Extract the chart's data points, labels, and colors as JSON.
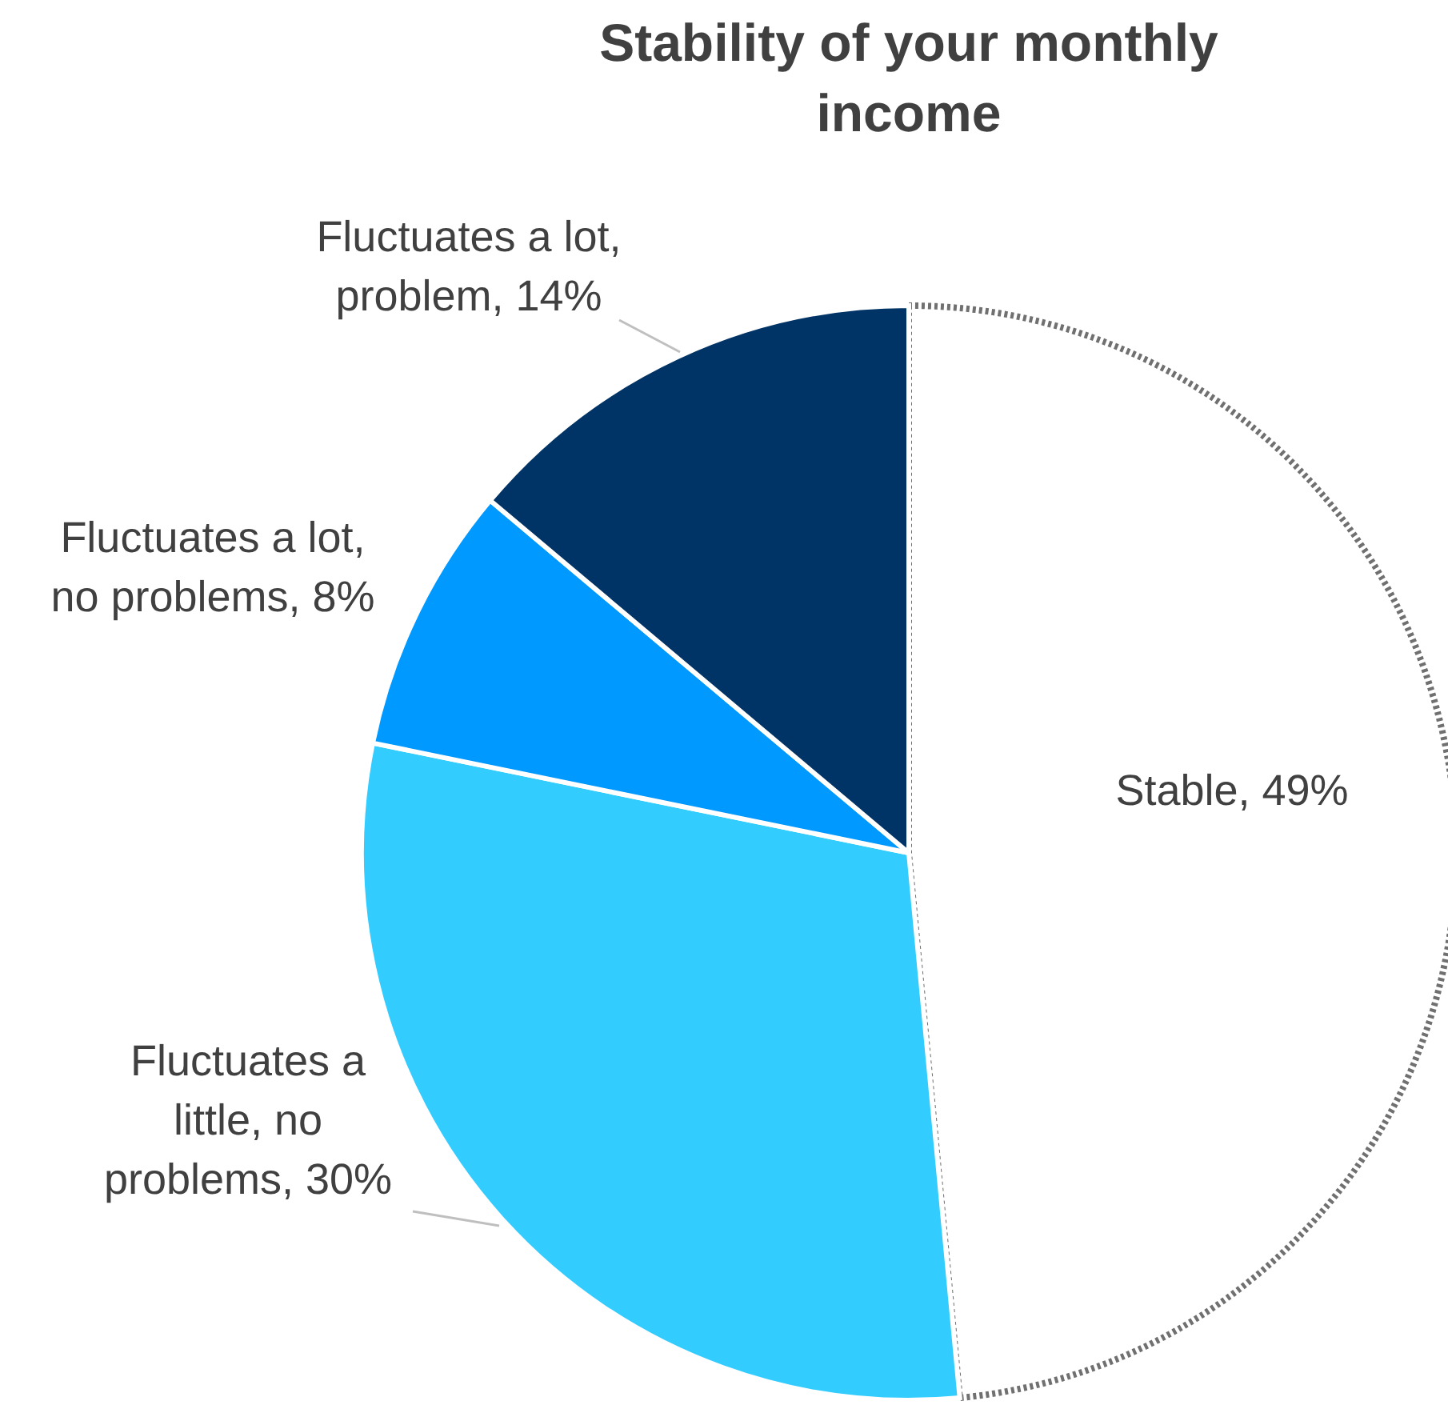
{
  "chart_data": {
    "type": "pie",
    "title": "Stability of your monthly income",
    "categories": [
      "Stable",
      "Fluctuates a little, no problems",
      "Fluctuates a lot, no problems",
      "Fluctuates a lot, problem"
    ],
    "values": [
      49,
      30,
      8,
      14
    ],
    "value_labels": [
      "49%",
      "30%",
      "8%",
      "14%"
    ],
    "colors": [
      "#ffffff",
      "#33ccff",
      "#0099ff",
      "#003366"
    ]
  }
}
